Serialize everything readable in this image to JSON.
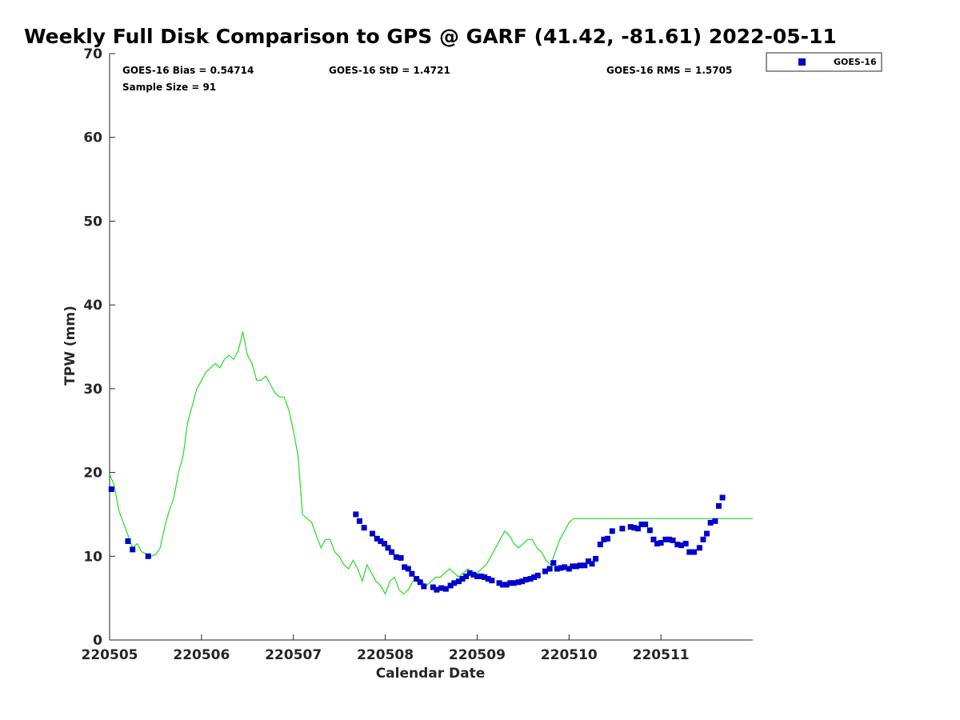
{
  "chart_data": {
    "type": "scatter",
    "title": "Weekly Full Disk Comparison to GPS @ GARF (41.42, -81.61) 2022-05-11",
    "xlabel": "Calendar Date",
    "ylabel": "TPW (mm)",
    "xlim": [
      0,
      7
    ],
    "ylim": [
      0,
      70
    ],
    "x_ticks": [
      0,
      1,
      2,
      3,
      4,
      5,
      6
    ],
    "x_tick_labels": [
      "220505",
      "220506",
      "220507",
      "220508",
      "220509",
      "220510",
      "220511"
    ],
    "y_ticks": [
      0,
      10,
      20,
      30,
      40,
      50,
      60,
      70
    ],
    "y_tick_labels": [
      "0",
      "10",
      "20",
      "30",
      "40",
      "50",
      "60",
      "70"
    ],
    "stats": {
      "bias": "GOES-16 Bias = 0.54714",
      "std": "GOES-16 StD = 1.4721",
      "rms": "GOES-16 RMS = 1.5705",
      "sample": "Sample Size = 91"
    },
    "legend": {
      "placement": "outside-top-right",
      "entries": [
        "GOES-16"
      ]
    },
    "colors": {
      "goes": "#0000cc",
      "gps": "#22dd22",
      "axis": "#262626"
    },
    "series": [
      {
        "name": "GPS",
        "kind": "line",
        "x": [
          0.0,
          0.05,
          0.1,
          0.15,
          0.2,
          0.25,
          0.3,
          0.35,
          0.4,
          0.45,
          0.5,
          0.55,
          0.6,
          0.65,
          0.7,
          0.75,
          0.8,
          0.85,
          0.9,
          0.95,
          1.0,
          1.05,
          1.1,
          1.15,
          1.2,
          1.25,
          1.3,
          1.35,
          1.4,
          1.45,
          1.5,
          1.55,
          1.6,
          1.65,
          1.7,
          1.75,
          1.8,
          1.85,
          1.9,
          1.95,
          2.0,
          2.05,
          2.1,
          2.15,
          2.2,
          2.25,
          2.3,
          2.35,
          2.4,
          2.45,
          2.5,
          2.55,
          2.6,
          2.65,
          2.7,
          2.75,
          2.8,
          2.85,
          2.9,
          2.95,
          3.0,
          3.05,
          3.1,
          3.15,
          3.2,
          3.25,
          3.3,
          3.35,
          3.4,
          3.45,
          3.5,
          3.55,
          3.6,
          3.65,
          3.7,
          3.75,
          3.8,
          3.85,
          3.9,
          3.95,
          4.0,
          4.05,
          4.1,
          4.15,
          4.2,
          4.25,
          4.3,
          4.35,
          4.4,
          4.45,
          4.5,
          4.55,
          4.6,
          4.65,
          4.7,
          4.75,
          4.8,
          4.85,
          4.9,
          4.95,
          5.0,
          5.05,
          5.1,
          5.15,
          5.2,
          5.25,
          5.3,
          5.35,
          5.4,
          5.45,
          5.5,
          5.55,
          5.6,
          5.65,
          5.7,
          5.75,
          5.8,
          5.85,
          5.9,
          5.95,
          6.0,
          6.05,
          6.1,
          6.15,
          6.2,
          6.25,
          6.3,
          6.35,
          6.4,
          6.45,
          6.5,
          6.55,
          6.6,
          6.65,
          6.7,
          6.75,
          6.8,
          6.85,
          6.9,
          6.95,
          7.0
        ],
        "y": [
          19.8,
          18.5,
          15.5,
          14.0,
          12.5,
          11.0,
          11.5,
          10.5,
          10.3,
          10.0,
          10.2,
          11.0,
          13.5,
          15.5,
          17.0,
          20.0,
          22.0,
          26.0,
          28.0,
          30.0,
          31.0,
          32.0,
          32.5,
          33.0,
          32.5,
          33.5,
          34.0,
          33.5,
          34.5,
          36.8,
          34.0,
          33.0,
          31.0,
          31.0,
          31.5,
          30.5,
          29.5,
          29.0,
          29.0,
          27.5,
          25.0,
          22.0,
          15.0,
          14.5,
          14.0,
          12.5,
          11.0,
          12.0,
          12.0,
          10.5,
          10.0,
          9.0,
          8.5,
          9.5,
          8.5,
          7.0,
          9.0,
          8.0,
          7.0,
          6.5,
          5.5,
          7.0,
          7.5,
          6.0,
          5.5,
          6.0,
          7.0,
          7.5,
          7.0,
          6.5,
          7.0,
          7.5,
          7.5,
          8.0,
          8.5,
          8.0,
          7.5,
          8.0,
          8.5,
          8.0,
          8.0,
          8.5,
          9.0,
          10.0,
          11.0,
          12.0,
          13.0,
          12.5,
          11.5,
          11.0,
          11.5,
          12.0,
          12.0,
          11.0,
          10.5,
          9.5,
          9.0,
          10.5,
          12.0,
          13.0,
          14.0,
          14.5,
          14.5,
          14.5,
          14.5,
          14.5,
          14.5,
          14.5,
          14.5,
          14.5,
          14.5,
          14.5,
          14.5,
          14.5,
          14.5,
          14.5,
          14.5,
          14.5,
          14.5,
          14.5,
          14.5,
          14.5,
          14.5,
          14.5,
          14.5,
          14.5,
          14.5,
          14.5,
          14.5,
          14.5,
          14.5,
          14.5,
          14.5,
          14.5,
          14.5,
          14.5,
          14.5,
          14.5,
          14.5,
          14.5,
          14.5
        ]
      },
      {
        "name": "GOES-16",
        "kind": "points",
        "x": [
          0.02,
          0.2,
          0.25,
          0.42,
          2.68,
          2.72,
          2.77,
          2.86,
          2.91,
          2.95,
          2.99,
          3.03,
          3.07,
          3.12,
          3.17,
          3.21,
          3.25,
          3.29,
          3.34,
          3.38,
          3.42,
          3.52,
          3.56,
          3.61,
          3.66,
          3.71,
          3.75,
          3.8,
          3.84,
          3.88,
          3.92,
          3.96,
          4.0,
          4.04,
          4.08,
          4.12,
          4.16,
          4.24,
          4.28,
          4.32,
          4.36,
          4.4,
          4.45,
          4.49,
          4.53,
          4.58,
          4.62,
          4.66,
          4.74,
          4.79,
          4.83,
          4.87,
          4.91,
          4.95,
          5.0,
          5.04,
          5.08,
          5.12,
          5.17,
          5.21,
          5.25,
          5.29,
          5.34,
          5.38,
          5.42,
          5.47,
          5.58,
          5.67,
          5.71,
          5.75,
          5.79,
          5.83,
          5.88,
          5.92,
          5.96,
          6.0,
          6.05,
          6.09,
          6.13,
          6.18,
          6.22,
          6.27,
          6.31,
          6.36,
          6.42,
          6.46,
          6.5,
          6.54,
          6.59,
          6.63,
          6.67
        ],
        "y": [
          18.0,
          11.8,
          10.8,
          10.0,
          15.0,
          14.2,
          13.4,
          12.7,
          12.1,
          11.8,
          11.5,
          11.0,
          10.5,
          9.9,
          9.8,
          8.7,
          8.5,
          7.9,
          7.3,
          6.9,
          6.4,
          6.3,
          6.0,
          6.2,
          6.1,
          6.5,
          6.8,
          7.0,
          7.3,
          7.6,
          8.0,
          7.8,
          7.6,
          7.6,
          7.5,
          7.3,
          7.1,
          6.8,
          6.6,
          6.6,
          6.8,
          6.8,
          6.9,
          7.0,
          7.2,
          7.3,
          7.5,
          7.7,
          8.2,
          8.5,
          9.2,
          8.5,
          8.6,
          8.7,
          8.5,
          8.8,
          8.8,
          8.9,
          8.9,
          9.4,
          9.1,
          9.7,
          11.4,
          12.0,
          12.1,
          13.0,
          13.3,
          13.5,
          13.4,
          13.3,
          13.8,
          13.8,
          13.1,
          12.0,
          11.5,
          11.6,
          12.0,
          12.0,
          11.9,
          11.4,
          11.3,
          11.5,
          10.5,
          10.5,
          11.0,
          12.0,
          12.7,
          14.0,
          14.2,
          16.0,
          17.0
        ]
      }
    ]
  }
}
